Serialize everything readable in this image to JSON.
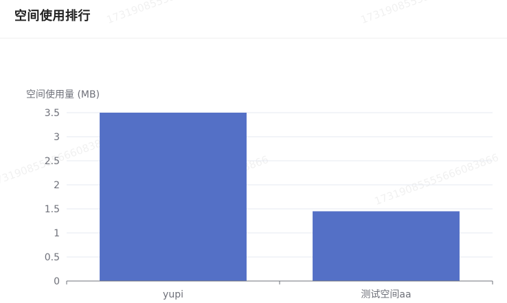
{
  "card": {
    "title": "空间使用排行"
  },
  "watermark": {
    "text": "17319085555666083866"
  },
  "colors": {
    "bar": "#5470c6",
    "grid": "#e6e9f0",
    "axis": "#6e7079",
    "label": "#6e7079",
    "title": "#1f1f1f"
  },
  "chart_data": {
    "type": "bar",
    "title": "",
    "xlabel": "",
    "ylabel": "空间使用量 (MB)",
    "categories": [
      "yupi",
      "测试空间aa"
    ],
    "values": [
      3.5,
      1.45
    ],
    "ylim": [
      0,
      3.5
    ],
    "yticks": [
      0,
      0.5,
      1,
      1.5,
      2,
      2.5,
      3,
      3.5
    ],
    "ytick_labels": [
      "0",
      "0.5",
      "1",
      "1.5",
      "2",
      "2.5",
      "3",
      "3.5"
    ],
    "grid": true,
    "legend": "none"
  }
}
